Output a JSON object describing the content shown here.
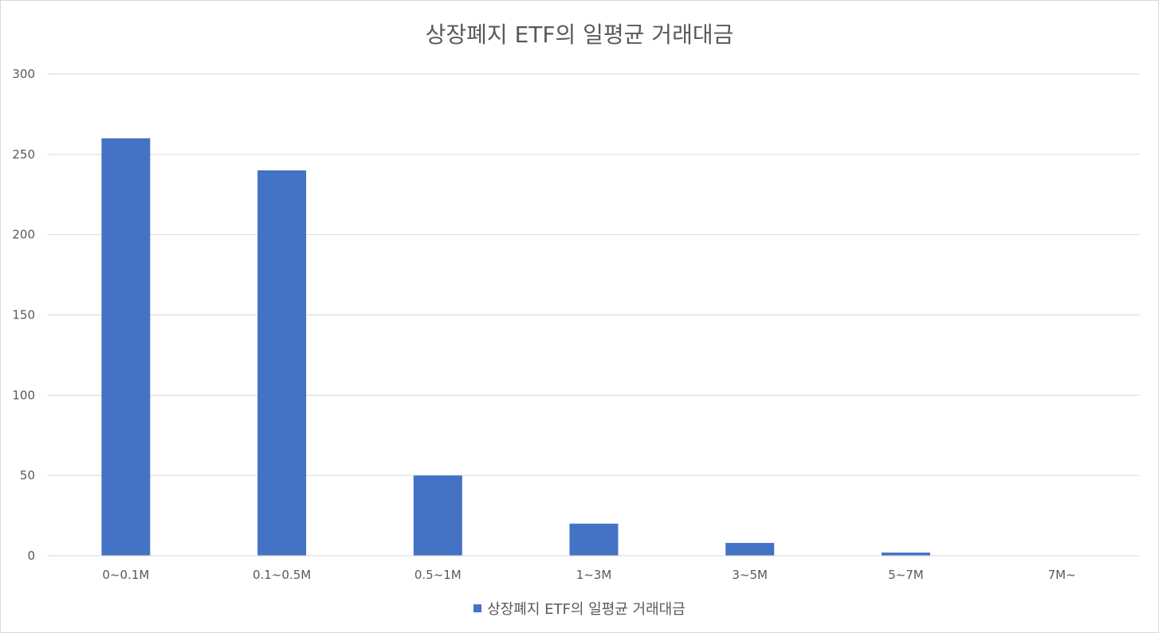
{
  "colors": {
    "bar": "#4472c4",
    "grid": "#d9d9d9",
    "text": "#595959"
  },
  "chart_data": {
    "type": "bar",
    "title": "상장폐지 ETF의 일평균 거래대금",
    "xlabel": "",
    "ylabel": "",
    "categories": [
      "0~0.1M",
      "0.1~0.5M",
      "0.5~1M",
      "1~3M",
      "3~5M",
      "5~7M",
      "7M~"
    ],
    "series": [
      {
        "name": "상장폐지 ETF의 일평균 거래대금",
        "values": [
          260,
          240,
          50,
          20,
          8,
          2,
          0
        ]
      }
    ],
    "ylim": [
      0,
      300
    ],
    "yticks": [
      "0",
      "50",
      "100",
      "150",
      "200",
      "250",
      "300"
    ],
    "grid": true,
    "legend_position": "bottom"
  }
}
